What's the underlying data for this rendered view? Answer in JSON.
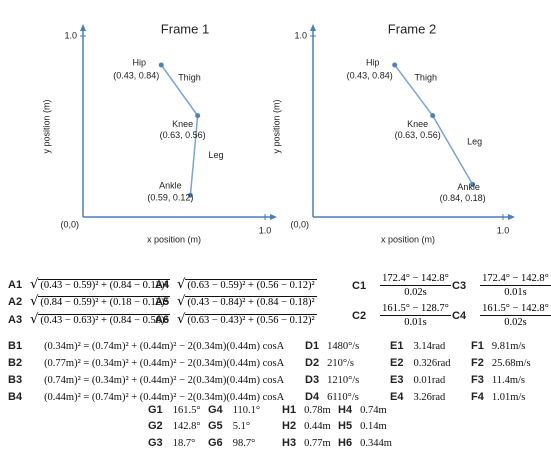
{
  "frames": [
    {
      "title": "Frame 1",
      "x_label": "x position (m)",
      "y_label": "y position (m)",
      "origin_label": "(0,0)",
      "xlim": [
        0,
        1
      ],
      "ylim": [
        0,
        1
      ],
      "xticks": [
        {
          "value": 1,
          "label": "1.0"
        }
      ],
      "yticks": [
        {
          "value": 1,
          "label": "1.0"
        }
      ],
      "joints": [
        {
          "name": "Hip",
          "label": "(0.43, 0.84)",
          "x": 0.43,
          "y": 0.84
        },
        {
          "name": "Knee",
          "label": "(0.63, 0.56)",
          "x": 0.63,
          "y": 0.56
        },
        {
          "name": "Ankle",
          "label": "(0.59, 0.12)",
          "x": 0.59,
          "y": 0.12
        }
      ],
      "segments": [
        "Thigh",
        "Leg"
      ]
    },
    {
      "title": "Frame 2",
      "x_label": "x position (m)",
      "y_label": "y position (m)",
      "origin_label": "(0,0)",
      "xlim": [
        0,
        1
      ],
      "ylim": [
        0,
        1
      ],
      "xticks": [
        {
          "value": 1,
          "label": "1.0"
        }
      ],
      "yticks": [
        {
          "value": 1,
          "label": "1.0"
        }
      ],
      "joints": [
        {
          "name": "Hip",
          "label": "(0.43, 0.84)",
          "x": 0.43,
          "y": 0.84
        },
        {
          "name": "Knee",
          "label": "(0.63, 0.56)",
          "x": 0.63,
          "y": 0.56
        },
        {
          "name": "Ankle",
          "label": "(0.84, 0.18)",
          "x": 0.84,
          "y": 0.18
        }
      ],
      "segments": [
        "Thigh",
        "Leg"
      ]
    }
  ],
  "equations": {
    "A": [
      {
        "label": "A1",
        "expr": "(0.43 − 0.59)² + (0.84 − 0.12)²"
      },
      {
        "label": "A2",
        "expr": "(0.84 − 0.59)² + (0.18 − 0.12)²"
      },
      {
        "label": "A3",
        "expr": "(0.43 − 0.63)² + (0.84 − 0.56)²"
      },
      {
        "label": "A4",
        "expr": "(0.63 − 0.59)² + (0.56 − 0.12)²"
      },
      {
        "label": "A5",
        "expr": "(0.43 − 0.84)² + (0.84 − 0.18)²"
      },
      {
        "label": "A6",
        "expr": "(0.63 − 0.43)² + (0.56 − 0.12)²"
      }
    ],
    "C": [
      {
        "label": "C1",
        "numerator": "172.4° − 142.8°",
        "denominator": "0.02s"
      },
      {
        "label": "C2",
        "numerator": "161.5° − 128.7°",
        "denominator": "0.01s"
      },
      {
        "label": "C3",
        "numerator": "172.4° − 142.8°",
        "denominator": "0.01s"
      },
      {
        "label": "C4",
        "numerator": "161.5° − 142.8°",
        "denominator": "0.02s"
      }
    ],
    "B": [
      {
        "label": "B1",
        "expr": "(0.34m)² = (0.74m)² + (0.44m)² − 2(0.34m)(0.44m) cosA"
      },
      {
        "label": "B2",
        "expr": "(0.77m)² = (0.34m)² + (0.44m)² − 2(0.34m)(0.44m) cosA"
      },
      {
        "label": "B3",
        "expr": "(0.74m)² = (0.34m)² + (0.44m)² − 2(0.34m)(0.44m) cosA"
      },
      {
        "label": "B4",
        "expr": "(0.44m)² = (0.74m)² + (0.44m)² − 2(0.34m)(0.44m) cosA"
      }
    ],
    "D": [
      {
        "label": "D1",
        "expr": "1480°/s"
      },
      {
        "label": "D2",
        "expr": "210°/s"
      },
      {
        "label": "D3",
        "expr": "1210°/s"
      },
      {
        "label": "D4",
        "expr": "6110°/s"
      }
    ],
    "E": [
      {
        "label": "E1",
        "expr": "3.14rad"
      },
      {
        "label": "E2",
        "expr": "0.326rad"
      },
      {
        "label": "E3",
        "expr": "0.01rad"
      },
      {
        "label": "E4",
        "expr": "3.26rad"
      }
    ],
    "F": [
      {
        "label": "F1",
        "expr": "9.81m/s"
      },
      {
        "label": "F2",
        "expr": "25.68m/s"
      },
      {
        "label": "F3",
        "expr": "11.4m/s"
      },
      {
        "label": "F4",
        "expr": "1.01m/s"
      }
    ],
    "G": [
      {
        "label": "G1",
        "expr": "161.5°"
      },
      {
        "label": "G2",
        "expr": "142.8°"
      },
      {
        "label": "G3",
        "expr": "18.7°"
      },
      {
        "label": "G4",
        "expr": "110.1°"
      },
      {
        "label": "G5",
        "expr": "5.1°"
      },
      {
        "label": "G6",
        "expr": "98.7°"
      }
    ],
    "H": [
      {
        "label": "H1",
        "expr": "0.78m"
      },
      {
        "label": "H2",
        "expr": "0.44m"
      },
      {
        "label": "H3",
        "expr": "0.77m"
      },
      {
        "label": "H4",
        "expr": "0.74m"
      },
      {
        "label": "H5",
        "expr": "0.14m"
      },
      {
        "label": "H6",
        "expr": "0.344m"
      }
    ]
  }
}
